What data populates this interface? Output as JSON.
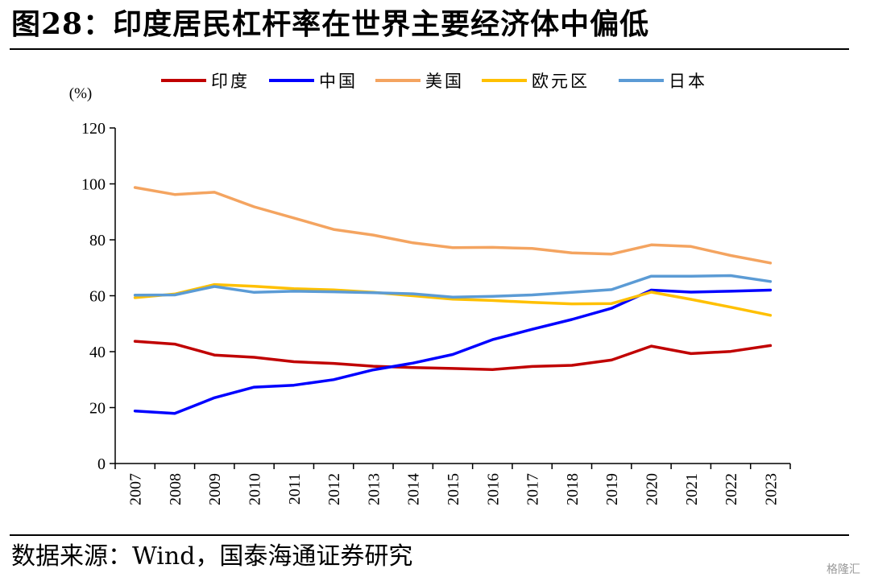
{
  "header": {
    "title": "图28：印度居民杠杆率在世界主要经济体中偏低"
  },
  "footer": {
    "source": "数据来源：Wind，国泰海通证券研究",
    "watermark": "格隆汇"
  },
  "colors": {
    "印度": "#C00000",
    "中国": "#0000FF",
    "美国": "#F4A460",
    "欧元区": "#FFC000",
    "日本": "#5B9BD5"
  },
  "chart_data": {
    "type": "line",
    "title": "印度居民杠杆率在世界主要经济体中偏低",
    "ylabel": "(%)",
    "xlabel": "",
    "ylim": [
      0,
      120
    ],
    "yticks": [
      0,
      20,
      40,
      60,
      80,
      100,
      120
    ],
    "grid": false,
    "legend_position": "top",
    "x": [
      "2007",
      "2008",
      "2009",
      "2010",
      "2011",
      "2012",
      "2013",
      "2014",
      "2015",
      "2016",
      "2017",
      "2018",
      "2019",
      "2020",
      "2021",
      "2022",
      "2023"
    ],
    "series": [
      {
        "name": "印度",
        "color": "#C00000",
        "values": [
          43.7,
          42.7,
          38.8,
          38.0,
          36.4,
          35.8,
          34.8,
          34.3,
          34.0,
          33.6,
          34.7,
          35.1,
          37.0,
          42.0,
          39.3,
          40.1,
          42.2
        ]
      },
      {
        "name": "中国",
        "color": "#0000FF",
        "values": [
          18.8,
          17.9,
          23.5,
          27.3,
          28.0,
          30.0,
          33.5,
          35.9,
          39.0,
          44.3,
          48.0,
          51.5,
          55.5,
          62.0,
          61.3,
          61.6,
          62.0
        ]
      },
      {
        "name": "美国",
        "color": "#F4A460",
        "values": [
          98.7,
          96.2,
          97.0,
          91.8,
          87.8,
          83.7,
          81.7,
          78.9,
          77.2,
          77.3,
          76.9,
          75.3,
          74.9,
          78.2,
          77.6,
          74.4,
          71.7
        ]
      },
      {
        "name": "欧元区",
        "color": "#FFC000",
        "values": [
          59.3,
          60.6,
          64.0,
          63.4,
          62.5,
          62.1,
          61.2,
          60.0,
          58.8,
          58.3,
          57.6,
          57.1,
          57.2,
          61.3,
          58.7,
          55.9,
          53.0
        ]
      },
      {
        "name": "日本",
        "color": "#5B9BD5",
        "values": [
          60.2,
          60.3,
          63.3,
          61.2,
          61.6,
          61.4,
          61.1,
          60.7,
          59.5,
          59.8,
          60.3,
          61.2,
          62.2,
          67.0,
          67.0,
          67.2,
          65.1
        ]
      }
    ]
  }
}
